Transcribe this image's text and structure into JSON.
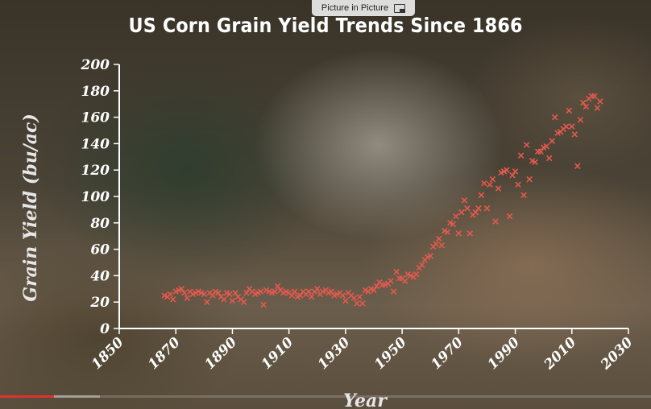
{
  "pip": {
    "label": "Picture in Picture",
    "icon": "picture-in-picture-icon"
  },
  "player": {
    "played_fraction": 0.083,
    "buffered_fraction": 0.153,
    "colors": {
      "played": "#e0312d",
      "buffered": "#b8b8b8"
    }
  },
  "chart_data": {
    "type": "scatter",
    "title": "US Corn Grain Yield Trends Since 1866",
    "xlabel": "Year",
    "ylabel": "Grain Yield (bu/ac)",
    "xlim": [
      1850,
      2030
    ],
    "ylim": [
      0,
      200
    ],
    "xticks": [
      1850,
      1870,
      1890,
      1910,
      1930,
      1950,
      1970,
      1990,
      2010,
      2030
    ],
    "yticks": [
      0,
      20,
      40,
      60,
      80,
      100,
      120,
      140,
      160,
      180,
      200
    ],
    "marker": "x",
    "color": "#e05a4e",
    "grid": false,
    "points": {
      "x": [
        1866,
        1867,
        1868,
        1869,
        1870,
        1871,
        1872,
        1873,
        1874,
        1875,
        1876,
        1877,
        1878,
        1879,
        1880,
        1881,
        1882,
        1883,
        1884,
        1885,
        1886,
        1887,
        1888,
        1889,
        1890,
        1891,
        1892,
        1893,
        1894,
        1895,
        1896,
        1897,
        1898,
        1899,
        1900,
        1901,
        1902,
        1903,
        1904,
        1905,
        1906,
        1907,
        1908,
        1909,
        1910,
        1911,
        1912,
        1913,
        1914,
        1915,
        1916,
        1917,
        1918,
        1919,
        1920,
        1921,
        1922,
        1923,
        1924,
        1925,
        1926,
        1927,
        1928,
        1929,
        1930,
        1931,
        1932,
        1933,
        1934,
        1935,
        1936,
        1937,
        1938,
        1939,
        1940,
        1941,
        1942,
        1943,
        1944,
        1945,
        1946,
        1947,
        1948,
        1949,
        1950,
        1951,
        1952,
        1953,
        1954,
        1955,
        1956,
        1957,
        1958,
        1959,
        1960,
        1961,
        1962,
        1963,
        1964,
        1965,
        1966,
        1967,
        1968,
        1969,
        1970,
        1971,
        1972,
        1973,
        1974,
        1975,
        1976,
        1977,
        1978,
        1979,
        1980,
        1981,
        1982,
        1983,
        1984,
        1985,
        1986,
        1987,
        1988,
        1989,
        1990,
        1991,
        1992,
        1993,
        1994,
        1995,
        1996,
        1997,
        1998,
        1999,
        2000,
        2001,
        2002,
        2003,
        2004,
        2005,
        2006,
        2007,
        2008,
        2009,
        2010,
        2011,
        2012,
        2013,
        2014,
        2015,
        2016,
        2017,
        2018,
        2019,
        2020
      ],
      "y": [
        25,
        24,
        26,
        22,
        28,
        29,
        30,
        27,
        23,
        28,
        26,
        27,
        28,
        27,
        26,
        20,
        27,
        25,
        28,
        27,
        24,
        22,
        27,
        26,
        21,
        27,
        24,
        22,
        20,
        27,
        30,
        28,
        26,
        27,
        28,
        18,
        29,
        28,
        27,
        28,
        32,
        29,
        27,
        28,
        27,
        25,
        28,
        24,
        25,
        28,
        26,
        28,
        24,
        28,
        30,
        26,
        28,
        29,
        27,
        28,
        25,
        26,
        27,
        25,
        21,
        27,
        25,
        23,
        19,
        24,
        19,
        29,
        28,
        30,
        29,
        32,
        35,
        33,
        33,
        34,
        36,
        28,
        43,
        38,
        38,
        36,
        41,
        40,
        39,
        41,
        46,
        48,
        52,
        54,
        55,
        62,
        64,
        68,
        63,
        74,
        73,
        80,
        79,
        85,
        72,
        88,
        97,
        91,
        72,
        86,
        88,
        91,
        101,
        110,
        91,
        109,
        113,
        81,
        106,
        118,
        119,
        120,
        85,
        116,
        119,
        109,
        131,
        101,
        139,
        113,
        127,
        126,
        134,
        134,
        137,
        138,
        129,
        142,
        160,
        148,
        149,
        151,
        153,
        165,
        153,
        147,
        123,
        158,
        171,
        168,
        174,
        176,
        176,
        167,
        172
      ]
    }
  }
}
